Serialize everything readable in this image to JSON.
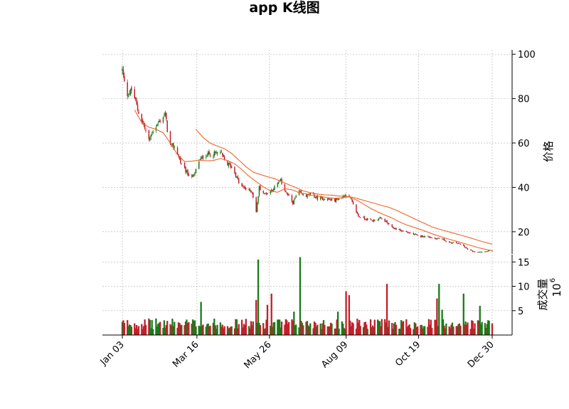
{
  "chart_data": {
    "type": "candlestick",
    "title": "app K线图",
    "price_panel": {
      "ylabel": "价格",
      "yticks": [
        20,
        40,
        60,
        80,
        100
      ],
      "ylim": [
        10,
        102
      ],
      "grid": true,
      "up_color": "#1a7a1a",
      "down_color": "#c0202a",
      "ma_color": "#f06428",
      "moving_averages": [
        {
          "points": [
            [
              "2024-01-15",
              74.9
            ],
            [
              "2024-01-22",
              69.2
            ],
            [
              "2024-01-29",
              67.1
            ],
            [
              "2024-02-05",
              66.2
            ],
            [
              "2024-02-12",
              64.6
            ],
            [
              "2024-02-19",
              60.0
            ],
            [
              "2024-02-26",
              54.7
            ],
            [
              "2024-03-04",
              51.6
            ],
            [
              "2024-03-11",
              51.8
            ],
            [
              "2024-03-18",
              52.3
            ],
            [
              "2024-03-25",
              52.0
            ],
            [
              "2024-04-01",
              52.1
            ],
            [
              "2024-04-08",
              53.0
            ],
            [
              "2024-04-15",
              52.1
            ],
            [
              "2024-04-22",
              50.6
            ],
            [
              "2024-04-29",
              48.0
            ],
            [
              "2024-05-06",
              45.0
            ],
            [
              "2024-05-13",
              42.6
            ],
            [
              "2024-05-20",
              40.2
            ],
            [
              "2024-05-27",
              38.4
            ],
            [
              "2024-06-03",
              37.8
            ],
            [
              "2024-06-10",
              39.4
            ],
            [
              "2024-06-17",
              38.9
            ],
            [
              "2024-06-24",
              37.6
            ],
            [
              "2024-07-01",
              37.1
            ],
            [
              "2024-07-08",
              36.3
            ],
            [
              "2024-07-15",
              35.9
            ],
            [
              "2024-07-22",
              35.3
            ],
            [
              "2024-07-29",
              35.1
            ],
            [
              "2024-08-05",
              35.3
            ],
            [
              "2024-08-12",
              35.7
            ],
            [
              "2024-08-19",
              34.3
            ],
            [
              "2024-08-26",
              32.5
            ],
            [
              "2024-09-02",
              30.5
            ],
            [
              "2024-09-09",
              28.9
            ],
            [
              "2024-09-16",
              27.5
            ],
            [
              "2024-09-23",
              26.2
            ],
            [
              "2024-09-30",
              24.5
            ],
            [
              "2024-10-07",
              23.1
            ],
            [
              "2024-10-14",
              22.1
            ],
            [
              "2024-10-21",
              21.0
            ],
            [
              "2024-10-28",
              19.8
            ],
            [
              "2024-11-04",
              18.6
            ],
            [
              "2024-11-11",
              17.6
            ],
            [
              "2024-11-18",
              16.6
            ],
            [
              "2024-11-25",
              15.7
            ],
            [
              "2024-12-02",
              14.8
            ],
            [
              "2024-12-09",
              13.8
            ],
            [
              "2024-12-16",
              12.9
            ],
            [
              "2024-12-23",
              12.1
            ],
            [
              "2024-12-30",
              11.5
            ]
          ]
        },
        {
          "points": [
            [
              "2024-03-15",
              66.2
            ],
            [
              "2024-03-22",
              62.5
            ],
            [
              "2024-03-29",
              59.9
            ],
            [
              "2024-04-05",
              58.6
            ],
            [
              "2024-04-12",
              57.4
            ],
            [
              "2024-04-19",
              55.3
            ],
            [
              "2024-04-26",
              52.3
            ],
            [
              "2024-05-03",
              49.3
            ],
            [
              "2024-05-10",
              46.9
            ],
            [
              "2024-05-17",
              45.8
            ],
            [
              "2024-05-24",
              44.8
            ],
            [
              "2024-05-31",
              43.9
            ],
            [
              "2024-06-07",
              42.6
            ],
            [
              "2024-06-14",
              41.2
            ],
            [
              "2024-06-21",
              39.9
            ],
            [
              "2024-06-28",
              38.4
            ],
            [
              "2024-07-05",
              37.6
            ],
            [
              "2024-07-12",
              37.0
            ],
            [
              "2024-07-19",
              36.6
            ],
            [
              "2024-07-26",
              36.5
            ],
            [
              "2024-08-02",
              36.1
            ],
            [
              "2024-08-09",
              36.0
            ],
            [
              "2024-08-16",
              35.5
            ],
            [
              "2024-08-23",
              34.6
            ],
            [
              "2024-08-30",
              33.7
            ],
            [
              "2024-09-06",
              32.8
            ],
            [
              "2024-09-13",
              31.8
            ],
            [
              "2024-09-20",
              31.0
            ],
            [
              "2024-09-27",
              29.7
            ],
            [
              "2024-10-04",
              28.2
            ],
            [
              "2024-10-11",
              26.7
            ],
            [
              "2024-10-18",
              25.2
            ],
            [
              "2024-10-25",
              23.7
            ],
            [
              "2024-11-01",
              22.2
            ],
            [
              "2024-11-08",
              21.2
            ],
            [
              "2024-11-15",
              20.3
            ],
            [
              "2024-11-22",
              19.4
            ],
            [
              "2024-11-29",
              18.5
            ],
            [
              "2024-12-06",
              17.6
            ],
            [
              "2024-12-13",
              16.6
            ],
            [
              "2024-12-20",
              15.6
            ],
            [
              "2024-12-30",
              14.4
            ]
          ]
        }
      ]
    },
    "volume_panel": {
      "ylabel": "成交量",
      "multiplier": "10",
      "multiplier_exponent": "6",
      "yticks": [
        5,
        10,
        15
      ],
      "ylim": [
        0,
        16.5
      ],
      "grid": true
    },
    "xaxis": {
      "ticks": [
        {
          "date": "2024-01-03",
          "label": "Jan 03"
        },
        {
          "date": "2024-03-16",
          "label": "Mar 16"
        },
        {
          "date": "2024-05-26",
          "label": "May 26"
        },
        {
          "date": "2024-08-09",
          "label": "Aug 09"
        },
        {
          "date": "2024-10-19",
          "label": "Oct 19"
        },
        {
          "date": "2024-12-30",
          "label": "Dec 30"
        }
      ],
      "xlim": [
        "2024-01-03",
        "2024-12-30"
      ]
    },
    "price_anchors": [
      [
        "2024-01-03",
        93
      ],
      [
        "2024-01-05",
        87
      ],
      [
        "2024-01-08",
        82
      ],
      [
        "2024-01-13",
        84
      ],
      [
        "2024-01-18",
        75
      ],
      [
        "2024-01-24",
        68
      ],
      [
        "2024-01-29",
        61
      ],
      [
        "2024-02-02",
        66
      ],
      [
        "2024-02-06",
        68
      ],
      [
        "2024-02-10",
        71
      ],
      [
        "2024-02-14",
        73
      ],
      [
        "2024-02-18",
        59
      ],
      [
        "2024-02-24",
        58
      ],
      [
        "2024-03-01",
        50
      ],
      [
        "2024-03-07",
        46
      ],
      [
        "2024-03-13",
        45
      ],
      [
        "2024-03-18",
        52
      ],
      [
        "2024-03-25",
        55
      ],
      [
        "2024-04-02",
        55
      ],
      [
        "2024-04-08",
        56
      ],
      [
        "2024-04-13",
        51
      ],
      [
        "2024-04-20",
        49
      ],
      [
        "2024-04-27",
        41
      ],
      [
        "2024-05-04",
        39
      ],
      [
        "2024-05-09",
        38
      ],
      [
        "2024-05-13",
        29
      ],
      [
        "2024-05-16",
        40
      ],
      [
        "2024-05-21",
        37
      ],
      [
        "2024-05-26",
        38
      ],
      [
        "2024-05-31",
        40
      ],
      [
        "2024-06-06",
        43
      ],
      [
        "2024-06-12",
        37
      ],
      [
        "2024-06-18",
        33
      ],
      [
        "2024-06-23",
        38
      ],
      [
        "2024-06-30",
        36
      ],
      [
        "2024-07-06",
        37
      ],
      [
        "2024-07-12",
        35
      ],
      [
        "2024-07-20",
        35
      ],
      [
        "2024-07-27",
        34
      ],
      [
        "2024-08-03",
        35
      ],
      [
        "2024-08-09",
        37
      ],
      [
        "2024-08-13",
        35
      ],
      [
        "2024-08-17",
        31
      ],
      [
        "2024-08-21",
        27
      ],
      [
        "2024-08-27",
        26
      ],
      [
        "2024-09-04",
        25
      ],
      [
        "2024-09-11",
        26
      ],
      [
        "2024-09-16",
        25
      ],
      [
        "2024-09-22",
        22
      ],
      [
        "2024-09-29",
        21
      ],
      [
        "2024-10-06",
        20
      ],
      [
        "2024-10-13",
        19
      ],
      [
        "2024-10-19",
        18
      ],
      [
        "2024-10-27",
        18
      ],
      [
        "2024-11-03",
        17
      ],
      [
        "2024-11-10",
        17
      ],
      [
        "2024-11-18",
        15
      ],
      [
        "2024-11-25",
        15
      ],
      [
        "2024-12-01",
        14
      ],
      [
        "2024-12-06",
        12
      ],
      [
        "2024-12-12",
        11
      ],
      [
        "2024-12-20",
        11
      ],
      [
        "2024-12-30",
        11.5
      ]
    ],
    "volume_spikes": [
      {
        "date": "2024-02-17",
        "value": 9.5,
        "dir": "down"
      },
      {
        "date": "2024-03-20",
        "value": 6.8,
        "dir": "up"
      },
      {
        "date": "2024-05-13",
        "value": 7.2,
        "dir": "down"
      },
      {
        "date": "2024-05-15",
        "value": 15.5,
        "dir": "up"
      },
      {
        "date": "2024-05-24",
        "value": 6.2,
        "dir": "down"
      },
      {
        "date": "2024-05-28",
        "value": 8.5,
        "dir": "down"
      },
      {
        "date": "2024-06-19",
        "value": 4.8,
        "dir": "up"
      },
      {
        "date": "2024-06-25",
        "value": 16.0,
        "dir": "up"
      },
      {
        "date": "2024-08-01",
        "value": 4.8,
        "dir": "up"
      },
      {
        "date": "2024-08-09",
        "value": 9.0,
        "dir": "down"
      },
      {
        "date": "2024-08-12",
        "value": 8.2,
        "dir": "down"
      },
      {
        "date": "2024-09-18",
        "value": 10.5,
        "dir": "down"
      },
      {
        "date": "2024-11-06",
        "value": 7.5,
        "dir": "down"
      },
      {
        "date": "2024-11-08",
        "value": 10.5,
        "dir": "up"
      },
      {
        "date": "2024-11-11",
        "value": 5.2,
        "dir": "up"
      },
      {
        "date": "2024-12-02",
        "value": 8.5,
        "dir": "up"
      },
      {
        "date": "2024-12-07",
        "value": 6.5,
        "dir": "down"
      },
      {
        "date": "2024-12-14",
        "value": 6.8,
        "dir": "down"
      },
      {
        "date": "2024-12-18",
        "value": 6.0,
        "dir": "up"
      }
    ]
  }
}
